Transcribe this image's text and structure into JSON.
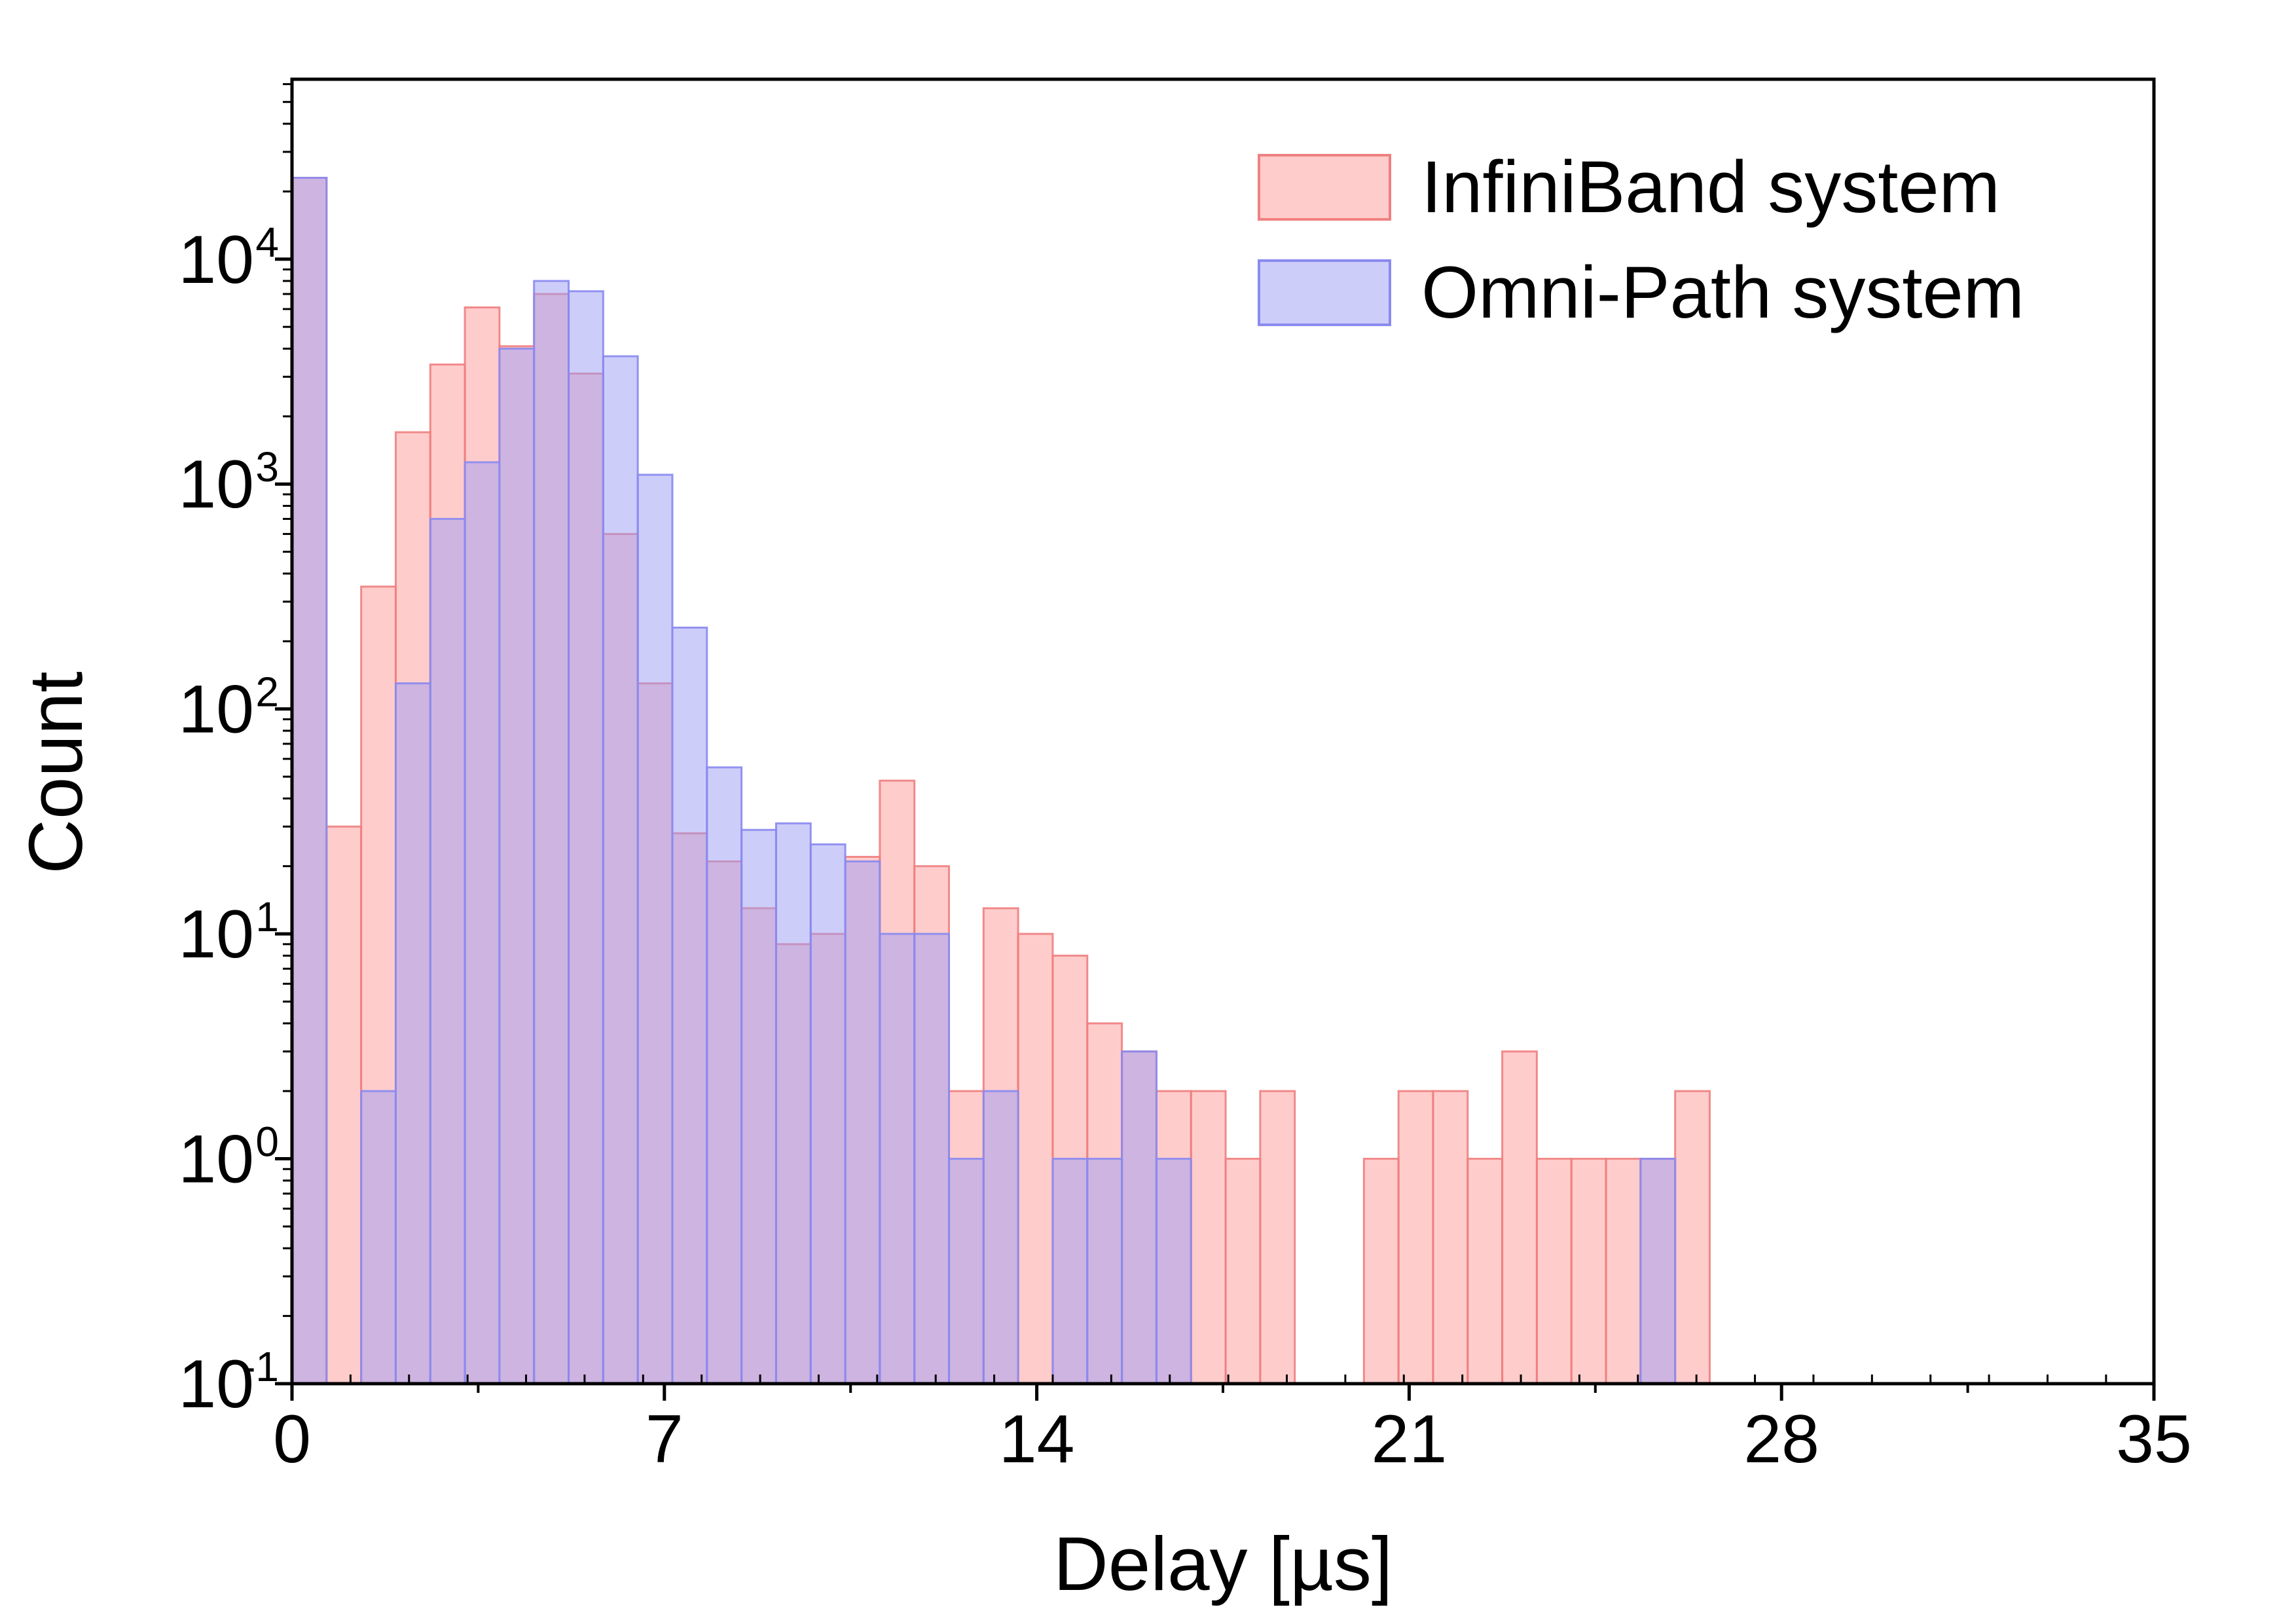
{
  "chart_data": {
    "type": "bar",
    "xlabel": "Delay [µs]",
    "ylabel": "Count",
    "xlim": [
      0,
      35
    ],
    "ylim_exponents": [
      -1,
      4.8
    ],
    "y_scale": "log",
    "bin_width_us": 0.65,
    "x_ticks": [
      "0",
      "7",
      "14",
      "21",
      "28",
      "35"
    ],
    "x_tick_values": [
      0,
      7,
      14,
      21,
      28,
      35
    ],
    "y_ticks": [
      {
        "base": "10",
        "exp": "-1",
        "value": 0.1
      },
      {
        "base": "10",
        "exp": "0",
        "value": 1
      },
      {
        "base": "10",
        "exp": "1",
        "value": 10
      },
      {
        "base": "10",
        "exp": "2",
        "value": 100
      },
      {
        "base": "10",
        "exp": "3",
        "value": 1000
      },
      {
        "base": "10",
        "exp": "4",
        "value": 10000
      }
    ],
    "grid": false,
    "legend_position": "top-right",
    "series": [
      {
        "name": "InfiniBand system",
        "color": "#ff9a9a",
        "edge": "#f08080",
        "bins": [
          {
            "x": 0.0,
            "v": 23000
          },
          {
            "x": 0.65,
            "v": 30
          },
          {
            "x": 1.3,
            "v": 350
          },
          {
            "x": 1.95,
            "v": 1700
          },
          {
            "x": 2.6,
            "v": 3400
          },
          {
            "x": 3.25,
            "v": 6100
          },
          {
            "x": 3.9,
            "v": 4100
          },
          {
            "x": 4.55,
            "v": 7000
          },
          {
            "x": 5.2,
            "v": 3100
          },
          {
            "x": 5.85,
            "v": 600
          },
          {
            "x": 6.5,
            "v": 130
          },
          {
            "x": 7.15,
            "v": 28
          },
          {
            "x": 7.8,
            "v": 21
          },
          {
            "x": 8.45,
            "v": 13
          },
          {
            "x": 9.1,
            "v": 9
          },
          {
            "x": 9.75,
            "v": 10
          },
          {
            "x": 10.4,
            "v": 22
          },
          {
            "x": 11.05,
            "v": 48
          },
          {
            "x": 11.7,
            "v": 20
          },
          {
            "x": 12.35,
            "v": 2
          },
          {
            "x": 13.0,
            "v": 13
          },
          {
            "x": 13.65,
            "v": 10
          },
          {
            "x": 14.3,
            "v": 8
          },
          {
            "x": 14.95,
            "v": 4
          },
          {
            "x": 15.6,
            "v": 3
          },
          {
            "x": 16.25,
            "v": 2
          },
          {
            "x": 16.9,
            "v": 2
          },
          {
            "x": 17.55,
            "v": 1
          },
          {
            "x": 18.2,
            "v": 2
          },
          {
            "x": 20.15,
            "v": 1
          },
          {
            "x": 20.8,
            "v": 2
          },
          {
            "x": 21.45,
            "v": 2
          },
          {
            "x": 22.1,
            "v": 1
          },
          {
            "x": 22.75,
            "v": 3
          },
          {
            "x": 23.4,
            "v": 1
          },
          {
            "x": 24.05,
            "v": 1
          },
          {
            "x": 24.7,
            "v": 1
          },
          {
            "x": 25.35,
            "v": 1
          },
          {
            "x": 26.0,
            "v": 2
          }
        ]
      },
      {
        "name": "Omni-Path system",
        "color": "#9b9bf5",
        "edge": "#8a8af0",
        "bins": [
          {
            "x": 0.0,
            "v": 23000
          },
          {
            "x": 1.3,
            "v": 2
          },
          {
            "x": 1.95,
            "v": 130
          },
          {
            "x": 2.6,
            "v": 700
          },
          {
            "x": 3.25,
            "v": 1250
          },
          {
            "x": 3.9,
            "v": 4000
          },
          {
            "x": 4.55,
            "v": 8000
          },
          {
            "x": 5.2,
            "v": 7200
          },
          {
            "x": 5.85,
            "v": 3700
          },
          {
            "x": 6.5,
            "v": 1100
          },
          {
            "x": 7.15,
            "v": 230
          },
          {
            "x": 7.8,
            "v": 55
          },
          {
            "x": 8.45,
            "v": 29
          },
          {
            "x": 9.1,
            "v": 31
          },
          {
            "x": 9.75,
            "v": 25
          },
          {
            "x": 10.4,
            "v": 21
          },
          {
            "x": 11.05,
            "v": 10
          },
          {
            "x": 11.7,
            "v": 10
          },
          {
            "x": 12.35,
            "v": 1
          },
          {
            "x": 13.0,
            "v": 2
          },
          {
            "x": 14.3,
            "v": 1
          },
          {
            "x": 14.95,
            "v": 1
          },
          {
            "x": 15.6,
            "v": 3
          },
          {
            "x": 16.25,
            "v": 1
          },
          {
            "x": 25.35,
            "v": 1
          }
        ]
      }
    ]
  }
}
